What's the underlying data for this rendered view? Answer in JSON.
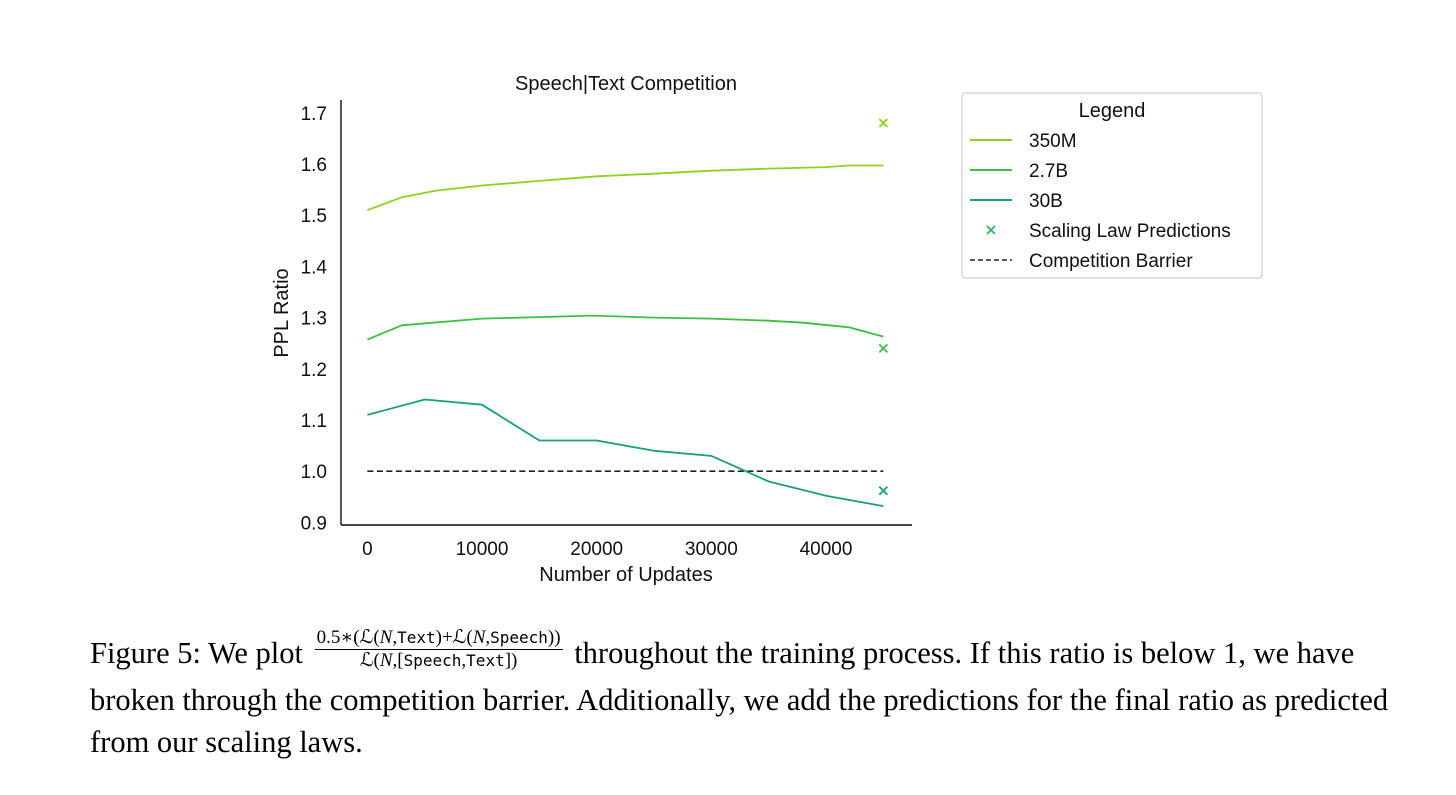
{
  "chart_data": {
    "type": "line",
    "title": "Speech|Text Competition",
    "xlabel": "Number of Updates",
    "ylabel": "PPL Ratio",
    "xlim": [
      -2300,
      47500
    ],
    "ylim": [
      0.895,
      1.725
    ],
    "xticks": [
      0,
      10000,
      20000,
      30000,
      40000
    ],
    "yticks": [
      0.9,
      1.0,
      1.1,
      1.2,
      1.3,
      1.4,
      1.5,
      1.6,
      1.7
    ],
    "xtick_labels": [
      "0",
      "10000",
      "20000",
      "30000",
      "40000"
    ],
    "ytick_labels": [
      "0.9",
      "1.0",
      "1.1",
      "1.2",
      "1.3",
      "1.4",
      "1.5",
      "1.6",
      "1.7"
    ],
    "grid": false,
    "legend": {
      "title": "Legend",
      "placement": "outside-right"
    },
    "series": [
      {
        "name": "350M",
        "color": "#8fd11e",
        "x": [
          0,
          3000,
          6000,
          10000,
          15000,
          20000,
          25000,
          30000,
          35000,
          40000,
          42000,
          45000
        ],
        "y": [
          1.51,
          1.535,
          1.548,
          1.558,
          1.567,
          1.576,
          1.581,
          1.587,
          1.591,
          1.594,
          1.597,
          1.597
        ]
      },
      {
        "name": "2.7B",
        "color": "#3cc040",
        "x": [
          0,
          3000,
          10000,
          15000,
          19500,
          25000,
          30000,
          35000,
          38000,
          42000,
          45000
        ],
        "y": [
          1.257,
          1.285,
          1.298,
          1.301,
          1.304,
          1.3,
          1.298,
          1.294,
          1.29,
          1.281,
          1.263
        ]
      },
      {
        "name": "30B",
        "color": "#17a07a",
        "x": [
          0,
          5000,
          10000,
          15000,
          20000,
          25000,
          30000,
          32000,
          35000,
          40000,
          45000
        ],
        "y": [
          1.11,
          1.14,
          1.13,
          1.06,
          1.06,
          1.04,
          1.03,
          1.01,
          0.98,
          0.952,
          0.932
        ]
      }
    ],
    "predictions": {
      "name": "Scaling Law Predictions",
      "legend_color": "#2fb55a",
      "points": [
        {
          "x": 45000,
          "y": 1.68,
          "color": "#8fd11e"
        },
        {
          "x": 45000,
          "y": 1.24,
          "color": "#3cc040"
        },
        {
          "x": 45000,
          "y": 0.962,
          "color": "#17a07a"
        }
      ]
    },
    "barrier": {
      "name": "Competition Barrier",
      "y": 1.0,
      "x": [
        0,
        45000
      ],
      "color": "#222222"
    }
  },
  "caption": {
    "lead": "Figure 5: We plot",
    "formula": {
      "num_a": "0.5∗(",
      "num_L1": "ℒ(",
      "num_N1": "N",
      "num_sep1": ",",
      "num_text": "Text",
      "num_close1": ")+",
      "num_L2": "ℒ(",
      "num_N2": "N",
      "num_sep2": ",",
      "num_speech": "Speech",
      "num_close2": "))",
      "den_L": "ℒ(",
      "den_N": "N",
      "den_sep": ",[",
      "den_speech": "Speech",
      "den_comma": ",",
      "den_text": "Text",
      "den_close": "])"
    },
    "rest": "throughout the training process. If this ratio is below 1, we have broken through the competition barrier. Additionally, we add the predictions for the final ratio as predicted from our scaling laws."
  }
}
